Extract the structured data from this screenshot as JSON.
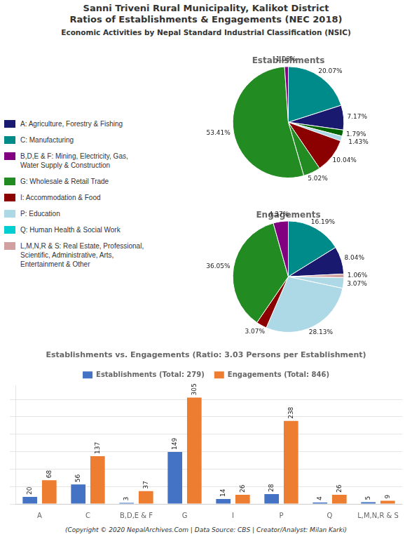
{
  "title": [
    "Sanni Triveni Rural Municipality, Kalikot District",
    "Ratios of Establishments & Engagements (NEC 2018)"
  ],
  "subtitle": "Economic Activities by Nepal Standard Industrial Classification (NSIC)",
  "legend": "left",
  "series": [
    {
      "name": "A: Agriculture, Forestry & Fishing",
      "color": "#191970"
    },
    {
      "name": "C: Manufacturing",
      "color": "#008B8B"
    },
    {
      "name": "B,D,E & F: Mining, Electricity, Gas,\nWater Supply & Construction",
      "color": "#800080"
    },
    {
      "name": "G: Wholesale & Retail Trade",
      "color": "#228B22"
    },
    {
      "name": "I: Accommodation & Food",
      "color": "#8B0000"
    },
    {
      "name": "P: Education",
      "color": "#ADD8E6"
    },
    {
      "name": "Q: Human Health & Social Work",
      "color": "#00CED1"
    },
    {
      "name": "L,M,N,R & S: Real Estate, Professional,\nScientific, Administrative, Arts,\nEntertainment & Other",
      "color": "#D2A0A0"
    }
  ],
  "annotations": [
    "(Copyright © 2020 NepalArchives.Com | Data Source: CBS | Creator/Analyst: Milan Karki)"
  ],
  "chart_data": [
    {
      "type": "pie",
      "title": "Establishments",
      "values": [
        20.07,
        7.17,
        1.79,
        1.43,
        10.04,
        5.02,
        53.41,
        1.08
      ],
      "value_labels": [
        "20.07%",
        "7.17%",
        "1.79%",
        "1.43%",
        "10.04%",
        "5.02%",
        "53.41%",
        "1.08%"
      ],
      "colors": [
        "#008B8B",
        "#191970",
        "#006400",
        "#ADD8E6",
        "#8B0000",
        "#228B22",
        "#228B22",
        "#800080"
      ],
      "data_labels": true
    },
    {
      "type": "pie",
      "title": "Engagements",
      "values": [
        16.19,
        8.04,
        1.06,
        3.07,
        28.13,
        3.07,
        36.05,
        4.37
      ],
      "value_labels": [
        "16.19%",
        "8.04%",
        "1.06%",
        "3.07%",
        "28.13%",
        "3.07%",
        "36.05%",
        "4.37%"
      ],
      "colors": [
        "#008B8B",
        "#191970",
        "#D2A0A0",
        "#ADD8E6",
        "#ADD8E6",
        "#8B0000",
        "#228B22",
        "#800080"
      ],
      "data_labels": true
    },
    {
      "type": "bar",
      "title": "Establishments vs. Engagements (Ratio: 3.03 Persons per Establishment)",
      "categories": [
        "A",
        "C",
        "B,D,E & F",
        "G",
        "I",
        "P",
        "Q",
        "L,M,N,R & S"
      ],
      "series": [
        {
          "name": "Establishments (Total: 279)",
          "color": "#4472C4",
          "values": [
            20,
            56,
            3,
            149,
            14,
            28,
            4,
            5
          ]
        },
        {
          "name": "Engagements (Total: 846)",
          "color": "#ED7D31",
          "values": [
            68,
            137,
            37,
            305,
            26,
            238,
            26,
            9
          ]
        }
      ],
      "ylim": [
        0,
        340
      ],
      "yticks": [
        0,
        50,
        100,
        150,
        200,
        250,
        300
      ],
      "grid": true,
      "legend": "top",
      "data_labels": true,
      "tick_labels": "x"
    }
  ]
}
